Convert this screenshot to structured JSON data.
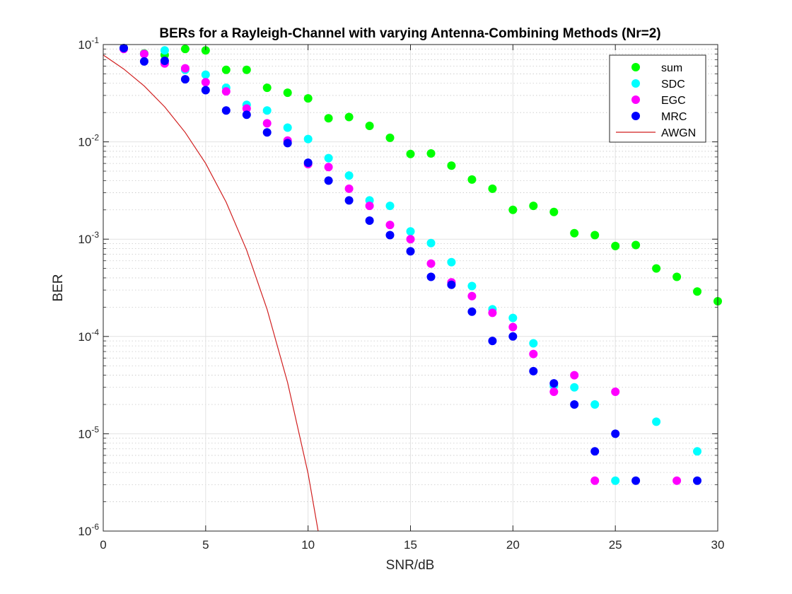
{
  "chart_data": {
    "type": "scatter",
    "title": "BERs for a Rayleigh-Channel with varying Antenna-Combining Methods (Nr=2)",
    "xlabel": "SNR/dB",
    "ylabel": "BER",
    "xlim": [
      0,
      30
    ],
    "ylim": [
      1e-06,
      0.1
    ],
    "y_scale": "log",
    "grid": true,
    "minor_grid": true,
    "legend_position": "top-right",
    "x_ticks": [
      "0",
      "5",
      "10",
      "15",
      "20",
      "25",
      "30"
    ],
    "y_ticks": [
      {
        "base": "10",
        "exp": "-1",
        "value": 0.1
      },
      {
        "base": "10",
        "exp": "-2",
        "value": 0.01
      },
      {
        "base": "10",
        "exp": "-3",
        "value": 0.001
      },
      {
        "base": "10",
        "exp": "-4",
        "value": 0.0001
      },
      {
        "base": "10",
        "exp": "-5",
        "value": 1e-05
      },
      {
        "base": "10",
        "exp": "-6",
        "value": 1e-06
      }
    ],
    "series": [
      {
        "name": "sum",
        "kind": "marker",
        "color": "#00ff00",
        "points": [
          [
            1,
            0.092
          ],
          [
            2,
            0.081
          ],
          [
            3,
            0.078
          ],
          [
            4,
            0.09
          ],
          [
            5,
            0.087
          ],
          [
            6,
            0.055
          ],
          [
            7,
            0.055
          ],
          [
            8,
            0.036
          ],
          [
            9,
            0.032
          ],
          [
            10,
            0.028
          ],
          [
            11,
            0.0175
          ],
          [
            12,
            0.018
          ],
          [
            13,
            0.0146
          ],
          [
            14,
            0.011
          ],
          [
            15,
            0.0075
          ],
          [
            16,
            0.0076
          ],
          [
            17,
            0.0057
          ],
          [
            18,
            0.0041
          ],
          [
            19,
            0.0033
          ],
          [
            20,
            0.002
          ],
          [
            21,
            0.0022
          ],
          [
            22,
            0.0019
          ],
          [
            23,
            0.00115
          ],
          [
            24,
            0.0011
          ],
          [
            25,
            0.00085
          ],
          [
            26,
            0.00087
          ],
          [
            27,
            0.0005
          ],
          [
            28,
            0.00041
          ],
          [
            29,
            0.00029
          ],
          [
            30,
            0.00023
          ]
        ]
      },
      {
        "name": "SDC",
        "kind": "marker",
        "color": "#00ffff",
        "points": [
          [
            1,
            0.091
          ],
          [
            2,
            0.08
          ],
          [
            3,
            0.087
          ],
          [
            4,
            0.055
          ],
          [
            5,
            0.049
          ],
          [
            6,
            0.036
          ],
          [
            7,
            0.024
          ],
          [
            8,
            0.021
          ],
          [
            9,
            0.014
          ],
          [
            10,
            0.0107
          ],
          [
            11,
            0.0068
          ],
          [
            12,
            0.0045
          ],
          [
            13,
            0.0025
          ],
          [
            14,
            0.0022
          ],
          [
            15,
            0.0012
          ],
          [
            16,
            0.00091
          ],
          [
            17,
            0.00058
          ],
          [
            18,
            0.00033
          ],
          [
            19,
            0.00019
          ],
          [
            20,
            0.000155
          ],
          [
            21,
            8.5e-05
          ],
          [
            22,
            3.1e-05
          ],
          [
            23,
            3e-05
          ],
          [
            24,
            2e-05
          ],
          [
            25,
            3.3e-06
          ],
          [
            27,
            1.33e-05
          ],
          [
            29,
            6.6e-06
          ]
        ]
      },
      {
        "name": "EGC",
        "kind": "marker",
        "color": "#ff00ff",
        "points": [
          [
            1,
            0.09
          ],
          [
            2,
            0.08
          ],
          [
            3,
            0.064
          ],
          [
            4,
            0.057
          ],
          [
            5,
            0.041
          ],
          [
            6,
            0.033
          ],
          [
            7,
            0.022
          ],
          [
            8,
            0.0155
          ],
          [
            9,
            0.0103
          ],
          [
            10,
            0.0059
          ],
          [
            11,
            0.0055
          ],
          [
            12,
            0.0033
          ],
          [
            13,
            0.0022
          ],
          [
            14,
            0.0014
          ],
          [
            15,
            0.001
          ],
          [
            16,
            0.00056
          ],
          [
            17,
            0.00036
          ],
          [
            18,
            0.00026
          ],
          [
            19,
            0.000175
          ],
          [
            20,
            0.000125
          ],
          [
            21,
            6.6e-05
          ],
          [
            22,
            2.7e-05
          ],
          [
            23,
            4e-05
          ],
          [
            24,
            3.3e-06
          ],
          [
            25,
            2.7e-05
          ],
          [
            28,
            3.3e-06
          ]
        ]
      },
      {
        "name": "MRC",
        "kind": "marker",
        "color": "#0000ff",
        "points": [
          [
            1,
            0.092
          ],
          [
            2,
            0.067
          ],
          [
            3,
            0.068
          ],
          [
            4,
            0.044
          ],
          [
            5,
            0.034
          ],
          [
            6,
            0.021
          ],
          [
            7,
            0.019
          ],
          [
            8,
            0.0125
          ],
          [
            9,
            0.0097
          ],
          [
            10,
            0.0061
          ],
          [
            11,
            0.004
          ],
          [
            12,
            0.0025
          ],
          [
            13,
            0.00155
          ],
          [
            14,
            0.0011
          ],
          [
            15,
            0.00075
          ],
          [
            16,
            0.00041
          ],
          [
            17,
            0.00034
          ],
          [
            18,
            0.00018
          ],
          [
            19,
            9e-05
          ],
          [
            20,
            0.0001
          ],
          [
            21,
            4.4e-05
          ],
          [
            22,
            3.3e-05
          ],
          [
            23,
            2e-05
          ],
          [
            24,
            6.6e-06
          ],
          [
            25,
            1e-05
          ],
          [
            26,
            3.3e-06
          ],
          [
            29,
            3.3e-06
          ]
        ]
      },
      {
        "name": "AWGN",
        "kind": "line",
        "color": "#d11f1f",
        "points": [
          [
            0,
            0.078
          ],
          [
            1,
            0.056
          ],
          [
            2,
            0.0375
          ],
          [
            3,
            0.0229
          ],
          [
            4,
            0.0125
          ],
          [
            5,
            0.006
          ],
          [
            6,
            0.0024
          ],
          [
            7,
            0.00077
          ],
          [
            8,
            0.00019
          ],
          [
            9,
            3.36e-05
          ],
          [
            10,
            3.9e-06
          ],
          [
            10.5,
            9.8e-07
          ]
        ]
      }
    ]
  }
}
